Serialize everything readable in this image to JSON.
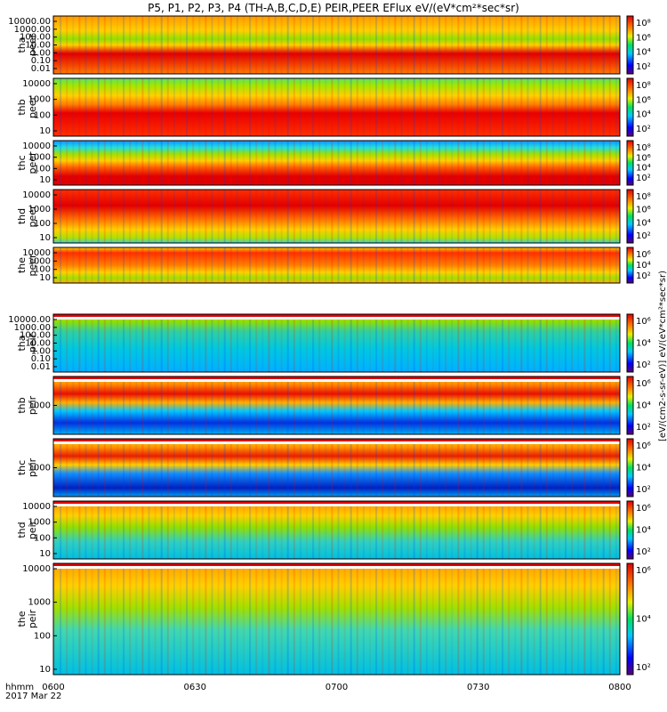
{
  "title": "P5, P1, P2, P3, P4 (TH-A,B,C,D,E) PEIR,PEER EFlux eV/(eV*cm²*sec*sr)",
  "x_labels": {
    "hhmm": "hhmm",
    "date": "2017 Mar 22"
  },
  "x_ticks": [
    "0600",
    "0630",
    "0700",
    "0730",
    "0800"
  ],
  "units_label": "[eV/(cm2-s-sr-eV)]  eV/(eV*cm²*sec*sr)",
  "colors": {
    "background": "#ffffff",
    "sat_red": "#cc0000",
    "gap_white": "#ffffff"
  },
  "chart_data": {
    "type": "heatmap",
    "colorscale": "rainbow (purple-blue-cyan-green-yellow-red)",
    "x_range": [
      "06:00",
      "08:00"
    ],
    "panels": [
      {
        "probe": "tha",
        "instrument": "peer",
        "yticks": [
          "10000.00",
          "1000.00",
          "100.00",
          "10.00",
          "1.00",
          "0.10",
          "0.01"
        ],
        "cticks": [
          "10⁸",
          "10⁶",
          "10⁴",
          "10²"
        ]
      },
      {
        "probe": "thb",
        "instrument": "peer",
        "yticks": [
          "10000",
          "1000",
          "100",
          "10"
        ],
        "cticks": [
          "10⁸",
          "10⁶",
          "10⁴",
          "10²"
        ]
      },
      {
        "probe": "thc",
        "instrument": "peer",
        "yticks": [
          "10000",
          "1000",
          "100",
          "10"
        ],
        "cticks": [
          "10⁸",
          "10⁶",
          "10⁴",
          "10²"
        ]
      },
      {
        "probe": "thd",
        "instrument": "peer",
        "yticks": [
          "10000",
          "1000",
          "100",
          "10"
        ],
        "cticks": [
          "10⁸",
          "10⁶",
          "10⁴",
          "10²"
        ]
      },
      {
        "probe": "the",
        "instrument": "peer",
        "yticks": [
          "10000",
          "1000",
          "100",
          "10"
        ],
        "cticks": [
          "10⁶",
          "10⁴",
          "10²"
        ]
      },
      {
        "probe": "tha",
        "instrument": "peir",
        "yticks": [
          "10000.00",
          "1000.00",
          "100.00",
          "10.00",
          "1.00",
          "0.10",
          "0.01"
        ],
        "cticks": [
          "10⁶",
          "10⁴",
          "10²"
        ]
      },
      {
        "probe": "thb",
        "instrument": "peir",
        "yticks": [
          "1000"
        ],
        "cticks": [
          "10⁶",
          "10⁴",
          "10²"
        ]
      },
      {
        "probe": "thc",
        "instrument": "peir",
        "yticks": [
          "1000"
        ],
        "cticks": [
          "10⁶",
          "10⁴",
          "10²"
        ]
      },
      {
        "probe": "thd",
        "instrument": "peir",
        "yticks": [
          "10000",
          "1000",
          "100",
          "10"
        ],
        "cticks": [
          "10⁶",
          "10⁴",
          "10²"
        ]
      },
      {
        "probe": "the",
        "instrument": "peir",
        "yticks": [
          "10000",
          "1000",
          "100",
          "10"
        ],
        "cticks": [
          "10⁶",
          "10⁴",
          "10²"
        ]
      }
    ]
  }
}
